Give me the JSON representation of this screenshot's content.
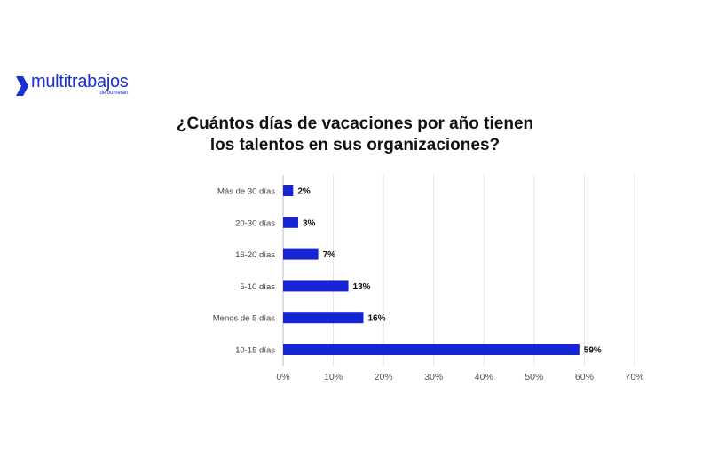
{
  "brand": {
    "name": "multitrabajos",
    "tagline": "de bumeran",
    "color": "#1b2fd6"
  },
  "chart_data": {
    "type": "bar",
    "orientation": "horizontal",
    "title_lines": [
      "¿Cuántos días de vacaciones por año tienen",
      "los talentos en sus organizaciones?"
    ],
    "categories": [
      "Más de 30 días",
      "20-30 días",
      "16-20 días",
      "5-10 días",
      "Menos de 5 días",
      "10-15 días"
    ],
    "values": [
      2,
      3,
      7,
      13,
      16,
      59
    ],
    "value_labels": [
      "2%",
      "3%",
      "7%",
      "13%",
      "16%",
      "59%"
    ],
    "xlim": [
      0,
      70
    ],
    "xticks": [
      "0%",
      "10%",
      "20%",
      "30%",
      "40%",
      "50%",
      "60%",
      "70%"
    ],
    "xtick_values": [
      0,
      10,
      20,
      30,
      40,
      50,
      60,
      70
    ],
    "bar_color": "#1525d6",
    "grid": true,
    "legend": "none"
  }
}
